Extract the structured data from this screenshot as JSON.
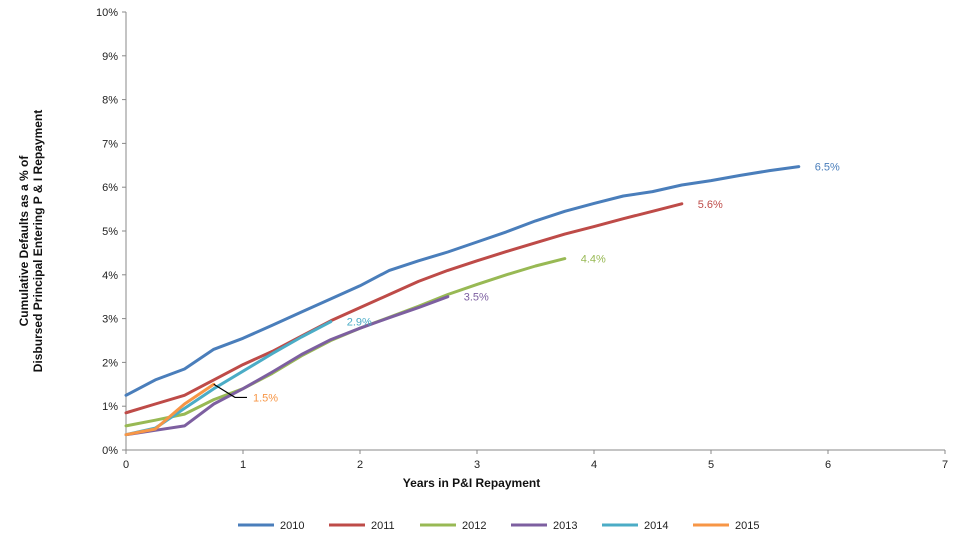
{
  "chart_data": {
    "type": "line",
    "xlabel": "Years in P&I Repayment",
    "ylabel_line1": "Cumulative Defaults as a % of",
    "ylabel_line2": "Disbursed Principal  Entering P & I Repayment",
    "xlim": [
      0,
      7
    ],
    "ylim": [
      0,
      10
    ],
    "x_ticks": [
      "0",
      "1",
      "2",
      "3",
      "4",
      "5",
      "6",
      "7"
    ],
    "y_ticks": [
      "0%",
      "1%",
      "2%",
      "3%",
      "4%",
      "5%",
      "6%",
      "7%",
      "8%",
      "9%",
      "10%"
    ],
    "grid": false,
    "legend_position": "bottom",
    "series": [
      {
        "name": "2010",
        "color": "#4a7ebb",
        "end_label": "6.5%",
        "x": [
          0,
          0.25,
          0.5,
          0.75,
          1,
          1.25,
          1.5,
          1.75,
          2,
          2.25,
          2.5,
          2.75,
          3,
          3.25,
          3.5,
          3.75,
          4,
          4.25,
          4.5,
          4.75,
          5,
          5.25,
          5.5,
          5.75
        ],
        "y": [
          1.25,
          1.6,
          1.85,
          2.3,
          2.55,
          2.85,
          3.15,
          3.45,
          3.75,
          4.1,
          4.32,
          4.52,
          4.75,
          4.98,
          5.23,
          5.45,
          5.63,
          5.8,
          5.9,
          6.05,
          6.15,
          6.27,
          6.38,
          6.47
        ]
      },
      {
        "name": "2011",
        "color": "#be4b48",
        "end_label": "5.6%",
        "x": [
          0,
          0.25,
          0.5,
          0.75,
          1,
          1.25,
          1.5,
          1.75,
          2,
          2.25,
          2.5,
          2.75,
          3,
          3.25,
          3.5,
          3.75,
          4,
          4.25,
          4.5,
          4.75
        ],
        "y": [
          0.85,
          1.05,
          1.25,
          1.6,
          1.95,
          2.25,
          2.6,
          2.95,
          3.25,
          3.55,
          3.85,
          4.1,
          4.32,
          4.53,
          4.73,
          4.93,
          5.1,
          5.28,
          5.45,
          5.62
        ]
      },
      {
        "name": "2012",
        "color": "#98b954",
        "end_label": "4.4%",
        "x": [
          0,
          0.25,
          0.5,
          0.75,
          1,
          1.25,
          1.5,
          1.75,
          2,
          2.25,
          2.5,
          2.75,
          3,
          3.25,
          3.5,
          3.75
        ],
        "y": [
          0.55,
          0.68,
          0.82,
          1.15,
          1.4,
          1.75,
          2.15,
          2.5,
          2.78,
          3.03,
          3.28,
          3.55,
          3.78,
          4.0,
          4.2,
          4.37
        ]
      },
      {
        "name": "2013",
        "color": "#7d5fa0",
        "end_label": "3.5%",
        "x": [
          0,
          0.25,
          0.5,
          0.75,
          1,
          1.25,
          1.5,
          1.75,
          2,
          2.25,
          2.5,
          2.75
        ],
        "y": [
          0.35,
          0.45,
          0.55,
          1.05,
          1.4,
          1.78,
          2.18,
          2.52,
          2.78,
          3.02,
          3.25,
          3.5
        ]
      },
      {
        "name": "2014",
        "color": "#4bacc6",
        "end_label": "2.9%",
        "x": [
          0,
          0.25,
          0.5,
          0.75,
          1,
          1.25,
          1.5,
          1.75
        ],
        "y": [
          0.35,
          0.5,
          0.95,
          1.4,
          1.8,
          2.2,
          2.58,
          2.93
        ]
      },
      {
        "name": "2015",
        "color": "#f79646",
        "end_label": "1.5%",
        "x": [
          0,
          0.25,
          0.5,
          0.75
        ],
        "y": [
          0.35,
          0.48,
          1.05,
          1.5
        ]
      }
    ]
  }
}
